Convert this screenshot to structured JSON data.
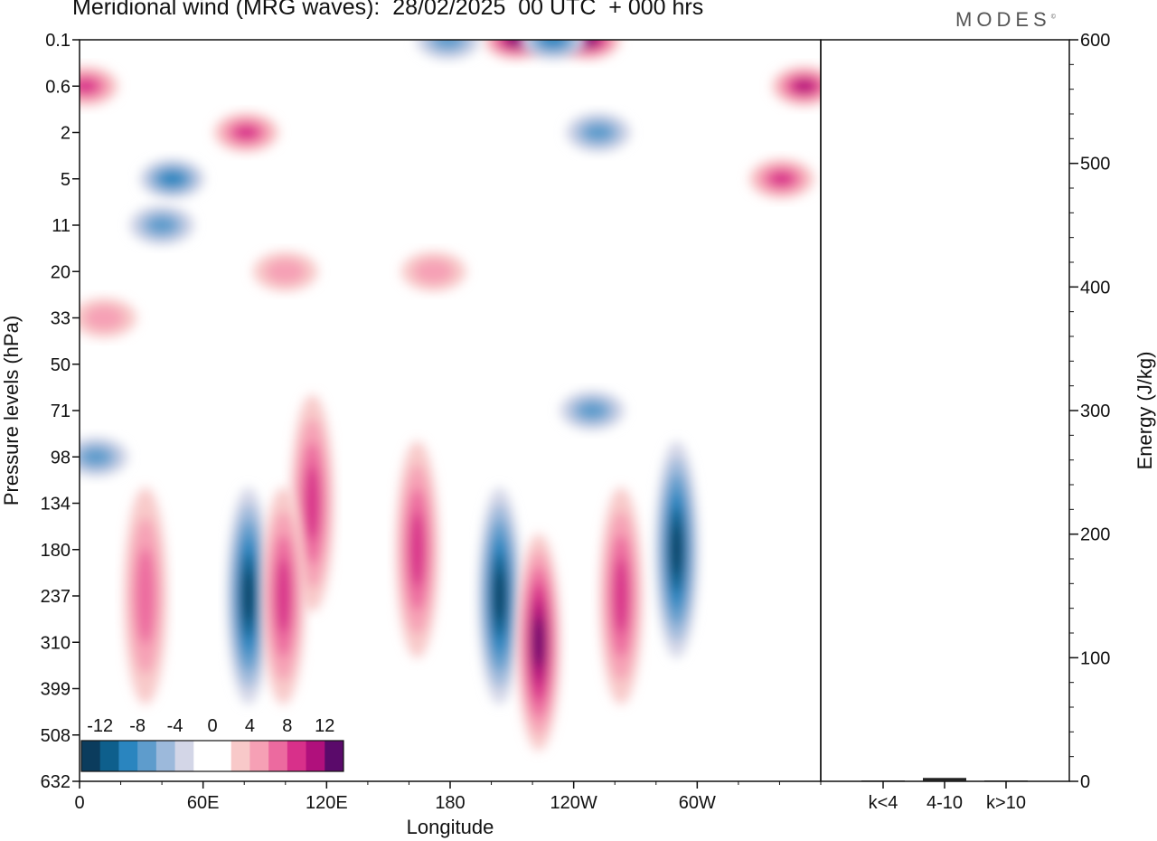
{
  "header": {
    "title": "Meridional wind (MRG waves):  28/02/2025  00 UTC  + 000 hrs",
    "brand": "MODES",
    "brand_mark": "©"
  },
  "chart_data": [
    {
      "type": "heatmap",
      "title": "Meridional wind (MRG waves):  28/02/2025  00 UTC  + 000 hrs",
      "xlabel": "Longitude",
      "ylabel": "Pressure levels (hPa)",
      "x_ticks": [
        "0",
        "60E",
        "120E",
        "180",
        "120W",
        "60W"
      ],
      "y_ticks": [
        "0.1",
        "0.6",
        "2",
        "5",
        "11",
        "20",
        "33",
        "50",
        "71",
        "98",
        "134",
        "180",
        "237",
        "310",
        "399",
        "508",
        "632"
      ],
      "colorbar": {
        "labels": [
          "-12",
          "-8",
          "-4",
          "0",
          "4",
          "8",
          "12"
        ],
        "colors": [
          "#0b3c5d",
          "#0e5f8c",
          "#2a85bf",
          "#5e9ccc",
          "#9cb9db",
          "#d3d6e7",
          "#ffffff",
          "#ffffff",
          "#f8c9c9",
          "#f6a0b5",
          "#ec6a9f",
          "#d8308a",
          "#b0107c",
          "#5a0a6a"
        ]
      },
      "features": [
        {
          "sign": "negative",
          "lon": 82,
          "level": "237",
          "peak": -12
        },
        {
          "sign": "negative",
          "lon": 204,
          "level": "237",
          "peak": -12
        },
        {
          "sign": "positive",
          "lon": 223,
          "level": "310",
          "peak": 12
        },
        {
          "sign": "positive",
          "lon": 164,
          "level": "180",
          "peak": 8
        },
        {
          "sign": "positive",
          "lon": 113,
          "level": "134",
          "peak": 8
        },
        {
          "sign": "positive",
          "lon": 99,
          "level": "237",
          "peak": 8
        },
        {
          "sign": "positive",
          "lon": 263,
          "level": "237",
          "peak": 8
        },
        {
          "sign": "negative",
          "lon": 290,
          "level": "180",
          "peak": -12
        },
        {
          "sign": "positive",
          "lon": 32,
          "level": "237",
          "peak": 6
        },
        {
          "sign": "negative",
          "lon": 8,
          "level": "98",
          "peak": -6
        },
        {
          "sign": "negative",
          "lon": 249,
          "level": "71",
          "peak": -6
        },
        {
          "sign": "positive",
          "lon": 3,
          "level": "0.6",
          "peak": 8
        },
        {
          "sign": "positive",
          "lon": 212,
          "level": "0.1",
          "peak": 12
        },
        {
          "sign": "positive",
          "lon": 247,
          "level": "0.1",
          "peak": 12
        },
        {
          "sign": "negative",
          "lon": 230,
          "level": "0.1",
          "peak": -8
        },
        {
          "sign": "negative",
          "lon": 179,
          "level": "0.1",
          "peak": -6
        },
        {
          "sign": "positive",
          "lon": 352,
          "level": "0.6",
          "peak": 10
        },
        {
          "sign": "positive",
          "lon": 341,
          "level": "5",
          "peak": 8
        },
        {
          "sign": "negative",
          "lon": 252,
          "level": "2",
          "peak": -6
        },
        {
          "sign": "negative",
          "lon": 45,
          "level": "5",
          "peak": -8
        },
        {
          "sign": "positive",
          "lon": 81,
          "level": "2",
          "peak": 8
        },
        {
          "sign": "positive",
          "lon": 100,
          "level": "20",
          "peak": 4
        },
        {
          "sign": "positive",
          "lon": 172,
          "level": "20",
          "peak": 4
        },
        {
          "sign": "negative",
          "lon": 40,
          "level": "11",
          "peak": -6
        },
        {
          "sign": "positive",
          "lon": 12,
          "level": "33",
          "peak": 4
        }
      ]
    },
    {
      "type": "bar",
      "categories": [
        "k<4",
        "4-10",
        "k>10"
      ],
      "values": [
        0,
        2,
        0
      ],
      "ylabel": "Energy (J/kg)",
      "ylim": [
        0,
        600
      ],
      "y_ticks": [
        "0",
        "100",
        "200",
        "300",
        "400",
        "500",
        "600"
      ]
    }
  ]
}
